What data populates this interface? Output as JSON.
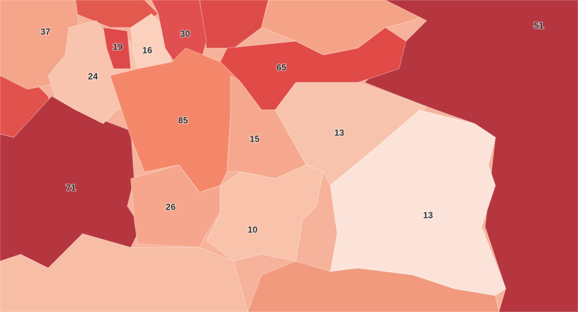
{
  "regions": [
    {
      "value": 37,
      "color": "#f4a58a"
    },
    {
      "value": 19,
      "color": "#e0494a"
    },
    {
      "value": 16,
      "color": "#fbd0bd"
    },
    {
      "value": 30,
      "color": "#e05050"
    },
    {
      "value": 65,
      "color": "#e04a47"
    },
    {
      "value": 51,
      "color": "#b5363f"
    },
    {
      "value": 24,
      "color": "#f8c4ae"
    },
    {
      "value": 85,
      "color": "#f4876a"
    },
    {
      "value": 15,
      "color": "#f6a88e"
    },
    {
      "value": 13,
      "color": "#f7c3ad"
    },
    {
      "value": 71,
      "color": "#b6363f"
    },
    {
      "value": 26,
      "color": "#f5a68c"
    },
    {
      "value": 10,
      "color": "#f8c2ab"
    },
    {
      "value": 13,
      "color": "#fce3da"
    }
  ]
}
